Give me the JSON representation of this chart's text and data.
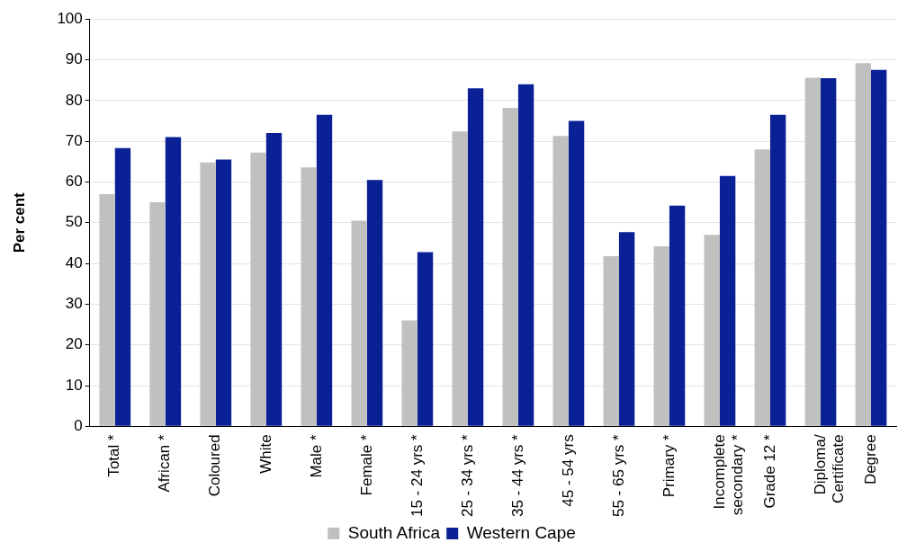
{
  "chart_data": {
    "type": "bar",
    "ylabel": "Per cent",
    "categories": [
      "Total *",
      "African *",
      "Coloured",
      "White",
      "Male *",
      "Female *",
      "15 - 24 yrs *",
      "25 - 34 yrs *",
      "35 - 44 yrs *",
      "45 - 54 yrs",
      "55 - 65 yrs *",
      "Primary *",
      "Incomplete secondary *",
      "Grade 12 *",
      "Diploma/Certificate",
      "Degree"
    ],
    "series": [
      {
        "name": "South Africa",
        "color": "#c0c0c0",
        "values": [
          57,
          55,
          64.8,
          67.2,
          63.6,
          50.5,
          26,
          72.4,
          78.2,
          71.3,
          41.8,
          44.2,
          47,
          68,
          85.6,
          89.2
        ]
      },
      {
        "name": "Western Cape",
        "color": "#0a2196",
        "values": [
          68.3,
          71,
          65.5,
          72,
          76.5,
          60.5,
          42.8,
          83,
          84,
          75,
          47.7,
          54.2,
          61.5,
          76.5,
          85.5,
          87.5
        ]
      }
    ],
    "ylim": [
      0,
      100
    ],
    "yticks": [
      0,
      10,
      20,
      30,
      40,
      50,
      60,
      70,
      80,
      90,
      100
    ],
    "grid": "y",
    "legend": "bottom"
  }
}
